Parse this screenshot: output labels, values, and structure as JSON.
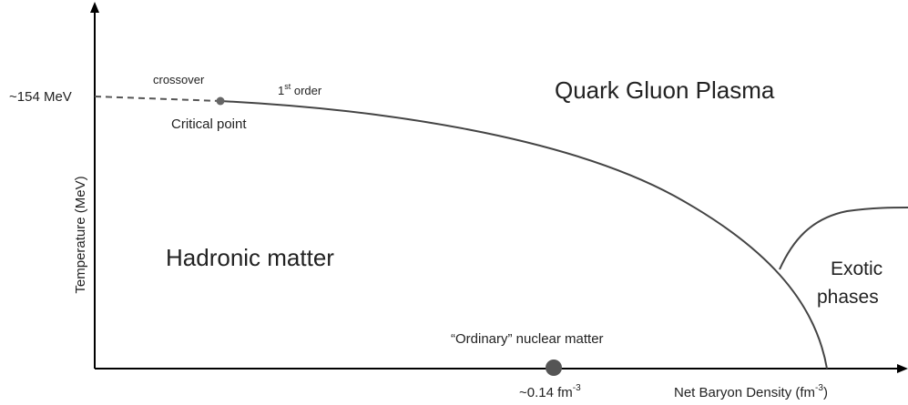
{
  "axes": {
    "y_label": "Temperature (MeV)",
    "x_label": {
      "text": "Net Baryon Density (fm",
      "sup": "-3",
      "end": ")"
    },
    "y_marker": "~154 MeV",
    "x_marker": {
      "text": "~0.14 fm",
      "sup": "-3"
    }
  },
  "labels": {
    "crossover": "crossover",
    "first_order": {
      "base": "1",
      "sup": "st",
      "rest": " order"
    },
    "critical_point": "Critical point",
    "qgp": "Quark Gluon Plasma",
    "hadronic": "Hadronic matter",
    "exotic": [
      "Exotic",
      "phases"
    ],
    "nuclear": "“Ordinary” nuclear matter"
  }
}
